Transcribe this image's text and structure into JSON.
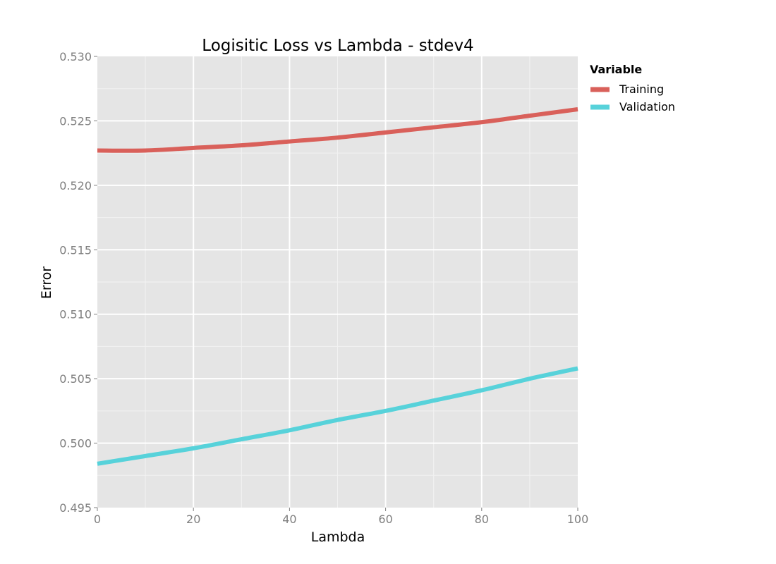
{
  "chart_data": {
    "type": "line",
    "title": "Logisitic Loss vs Lambda - stdev4",
    "xlabel": "Lambda",
    "ylabel": "Error",
    "xlim": [
      0,
      100
    ],
    "ylim": [
      0.495,
      0.53
    ],
    "x_ticks": [
      "0",
      "20",
      "40",
      "60",
      "80",
      "100"
    ],
    "y_ticks": [
      "0.495",
      "0.500",
      "0.505",
      "0.510",
      "0.515",
      "0.520",
      "0.525",
      "0.530"
    ],
    "grid": true,
    "legend_title": "Variable",
    "legend_position": "right",
    "x": [
      0,
      10,
      20,
      30,
      40,
      50,
      60,
      70,
      80,
      90,
      100
    ],
    "series": [
      {
        "name": "Training",
        "color": "#d9605a",
        "values": [
          0.5227,
          0.5227,
          0.5229,
          0.5231,
          0.5234,
          0.5237,
          0.5241,
          0.5245,
          0.5249,
          0.5254,
          0.5259
        ]
      },
      {
        "name": "Validation",
        "color": "#57d2da",
        "values": [
          0.4984,
          0.499,
          0.4996,
          0.5003,
          0.501,
          0.5018,
          0.5025,
          0.5033,
          0.5041,
          0.505,
          0.5058
        ]
      }
    ]
  }
}
